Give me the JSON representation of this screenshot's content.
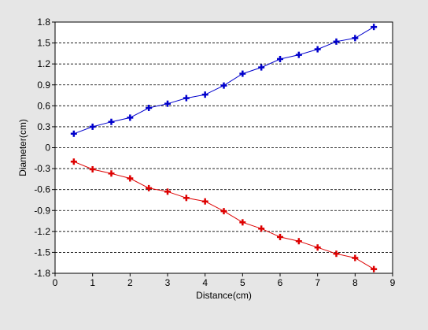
{
  "chart_data": {
    "type": "line",
    "title": "",
    "xlabel": "Distance(cm)",
    "ylabel": "Diameter(cm)",
    "xlim": [
      0,
      9
    ],
    "ylim": [
      -1.8,
      1.8
    ],
    "xticks": [
      0,
      1,
      2,
      3,
      4,
      5,
      6,
      7,
      8,
      9
    ],
    "yticks": [
      -1.8,
      -1.5,
      -1.2,
      -0.9,
      -0.6,
      -0.3,
      0,
      0.3,
      0.6,
      0.9,
      1.2,
      1.5,
      1.8
    ],
    "xtick_labels": [
      "0",
      "1",
      "2",
      "3",
      "4",
      "5",
      "6",
      "7",
      "8",
      "9"
    ],
    "ytick_labels": [
      "-1.8",
      "-1.5",
      "-1.2",
      "-0.9",
      "-0.6",
      "-0.3",
      "0",
      "0.3",
      "0.6",
      "0.9",
      "1.2",
      "1.5",
      "1.8"
    ],
    "grid": "horizontal-dashed",
    "legend": "none",
    "x": [
      0.5,
      1.0,
      1.5,
      2.0,
      2.5,
      3.0,
      3.5,
      4.0,
      4.5,
      5.0,
      5.5,
      6.0,
      6.5,
      7.0,
      7.5,
      8.0,
      8.5
    ],
    "series": [
      {
        "color": "#0000cc",
        "marker": "plus",
        "values": [
          0.2,
          0.3,
          0.37,
          0.43,
          0.57,
          0.63,
          0.71,
          0.76,
          0.89,
          1.06,
          1.15,
          1.27,
          1.33,
          1.41,
          1.52,
          1.57,
          1.73
        ]
      },
      {
        "color": "#dd0000",
        "marker": "plus",
        "values": [
          -0.2,
          -0.31,
          -0.37,
          -0.44,
          -0.58,
          -0.63,
          -0.72,
          -0.77,
          -0.91,
          -1.07,
          -1.16,
          -1.28,
          -1.34,
          -1.43,
          -1.52,
          -1.58,
          -1.74
        ]
      }
    ]
  }
}
